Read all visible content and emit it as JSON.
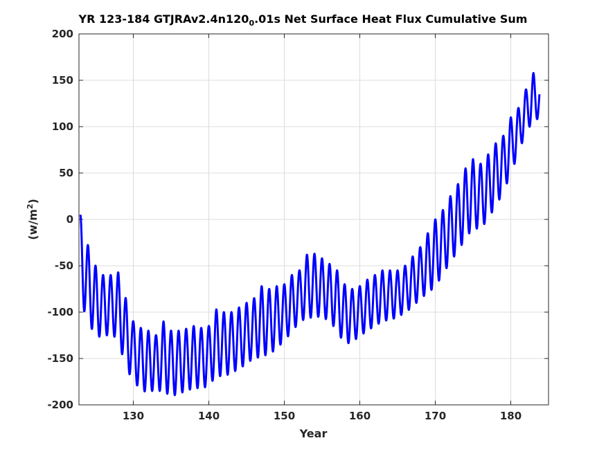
{
  "chart_data": {
    "type": "line",
    "title_main": "YR 123-184 GTJRAv2.4n120",
    "title_sub": "0",
    "title_tail": ".01s Net Surface Heat Flux  Cumulative Sum",
    "xlabel": "Year",
    "ylabel_main": "(w/m",
    "ylabel_sup": "2",
    "ylabel_tail": ")",
    "xlim": [
      122.8,
      185
    ],
    "ylim": [
      -200,
      200
    ],
    "xticks": [
      130,
      140,
      150,
      160,
      170,
      180
    ],
    "yticks": [
      -200,
      -150,
      -100,
      -50,
      0,
      50,
      100,
      150,
      200
    ],
    "grid": true,
    "line_color": "#0000ff",
    "seasonal_cycle": "annual",
    "series": [
      {
        "annual_max": [
          [
            123.0,
            5
          ],
          [
            124.0,
            -28
          ],
          [
            125.0,
            -50
          ],
          [
            126.0,
            -60
          ],
          [
            127.0,
            -60
          ],
          [
            128.0,
            -57
          ],
          [
            129.0,
            -85
          ],
          [
            130.0,
            -110
          ],
          [
            131.0,
            -117
          ],
          [
            132.0,
            -120
          ],
          [
            133.0,
            -125
          ],
          [
            134.0,
            -110
          ],
          [
            135.0,
            -120
          ],
          [
            136.0,
            -120
          ],
          [
            137.0,
            -118
          ],
          [
            138.0,
            -115
          ],
          [
            139.0,
            -117
          ],
          [
            140.0,
            -115
          ],
          [
            141.0,
            -97
          ],
          [
            142.0,
            -100
          ],
          [
            143.0,
            -100
          ],
          [
            144.0,
            -95
          ],
          [
            145.0,
            -90
          ],
          [
            146.0,
            -85
          ],
          [
            147.0,
            -72
          ],
          [
            148.0,
            -75
          ],
          [
            149.0,
            -72
          ],
          [
            150.0,
            -70
          ],
          [
            151.0,
            -60
          ],
          [
            152.0,
            -55
          ],
          [
            153.0,
            -38
          ],
          [
            154.0,
            -37
          ],
          [
            155.0,
            -42
          ],
          [
            156.0,
            -48
          ],
          [
            157.0,
            -55
          ],
          [
            158.0,
            -70
          ],
          [
            159.0,
            -75
          ],
          [
            160.0,
            -72
          ],
          [
            161.0,
            -65
          ],
          [
            162.0,
            -60
          ],
          [
            163.0,
            -55
          ],
          [
            164.0,
            -55
          ],
          [
            165.0,
            -55
          ],
          [
            166.0,
            -50
          ],
          [
            167.0,
            -40
          ],
          [
            168.0,
            -30
          ],
          [
            169.0,
            -15
          ],
          [
            170.0,
            0
          ],
          [
            171.0,
            10
          ],
          [
            172.0,
            25
          ],
          [
            173.0,
            38
          ],
          [
            174.0,
            55
          ],
          [
            175.0,
            65
          ],
          [
            176.0,
            60
          ],
          [
            177.0,
            70
          ],
          [
            178.0,
            82
          ],
          [
            179.0,
            90
          ],
          [
            180.0,
            110
          ],
          [
            181.0,
            120
          ],
          [
            182.0,
            140
          ],
          [
            183.0,
            158
          ],
          [
            183.8,
            148
          ]
        ],
        "annual_min": [
          [
            123.0,
            -90
          ],
          [
            124.0,
            -108
          ],
          [
            125.0,
            -128
          ],
          [
            126.0,
            -125
          ],
          [
            127.0,
            -125
          ],
          [
            128.0,
            -128
          ],
          [
            129.0,
            -162
          ],
          [
            130.0,
            -172
          ],
          [
            131.0,
            -186
          ],
          [
            132.0,
            -185
          ],
          [
            133.0,
            -185
          ],
          [
            134.0,
            -185
          ],
          [
            135.0,
            -191
          ],
          [
            136.0,
            -188
          ],
          [
            137.0,
            -185
          ],
          [
            138.0,
            -182
          ],
          [
            139.0,
            -182
          ],
          [
            140.0,
            -180
          ],
          [
            141.0,
            -168
          ],
          [
            142.0,
            -170
          ],
          [
            143.0,
            -165
          ],
          [
            144.0,
            -162
          ],
          [
            145.0,
            -155
          ],
          [
            146.0,
            -150
          ],
          [
            147.0,
            -148
          ],
          [
            148.0,
            -145
          ],
          [
            149.0,
            -140
          ],
          [
            150.0,
            -130
          ],
          [
            151.0,
            -122
          ],
          [
            152.0,
            -110
          ],
          [
            153.0,
            -107
          ],
          [
            154.0,
            -105
          ],
          [
            155.0,
            -105
          ],
          [
            156.0,
            -110
          ],
          [
            157.0,
            -120
          ],
          [
            158.0,
            -135
          ],
          [
            159.0,
            -132
          ],
          [
            160.0,
            -126
          ],
          [
            161.0,
            -120
          ],
          [
            162.0,
            -115
          ],
          [
            163.0,
            -110
          ],
          [
            164.0,
            -108
          ],
          [
            165.0,
            -106
          ],
          [
            166.0,
            -100
          ],
          [
            167.0,
            -95
          ],
          [
            168.0,
            -85
          ],
          [
            169.0,
            -80
          ],
          [
            170.0,
            -72
          ],
          [
            171.0,
            -60
          ],
          [
            172.0,
            -45
          ],
          [
            173.0,
            -35
          ],
          [
            174.0,
            -20
          ],
          [
            175.0,
            -10
          ],
          [
            176.0,
            -10
          ],
          [
            177.0,
            0
          ],
          [
            178.0,
            15
          ],
          [
            179.0,
            28
          ],
          [
            180.0,
            50
          ],
          [
            181.0,
            70
          ],
          [
            182.0,
            95
          ],
          [
            183.0,
            105
          ],
          [
            183.8,
            110
          ]
        ]
      }
    ]
  }
}
